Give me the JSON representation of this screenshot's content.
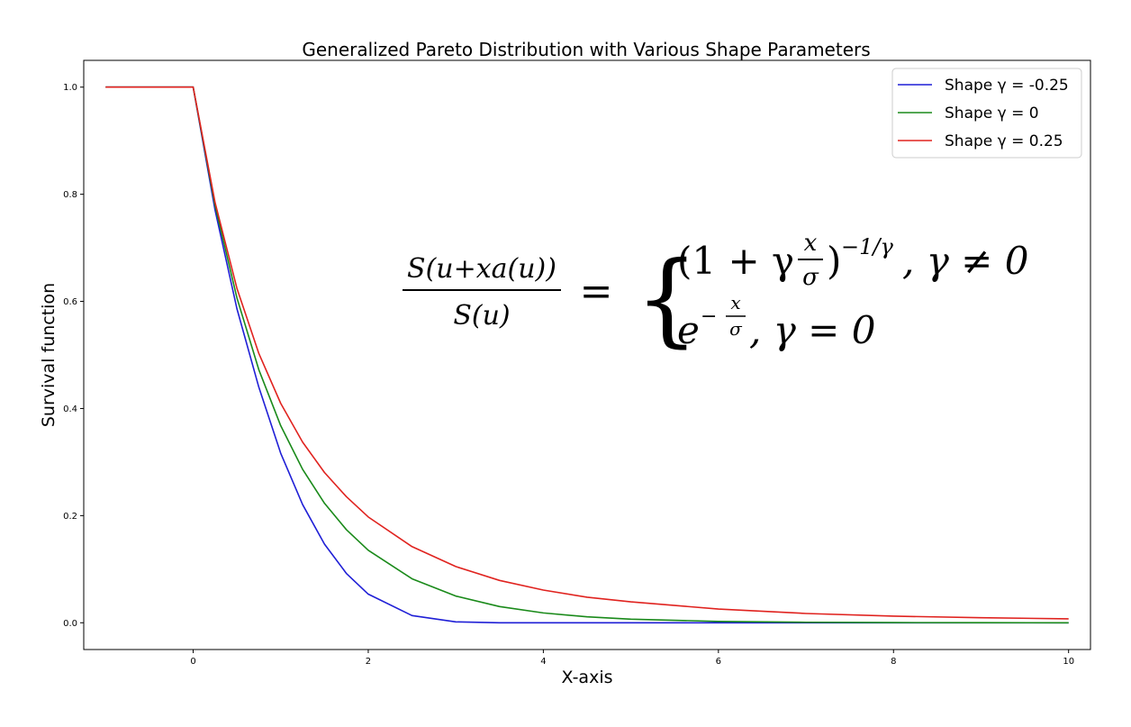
{
  "chart_data": {
    "type": "line",
    "title": "Generalized Pareto Distribution with Various Shape Parameters",
    "xlabel": "X-axis",
    "ylabel": "Survival function",
    "xlim": [
      -1.25,
      10.25
    ],
    "ylim": [
      -0.05,
      1.05
    ],
    "x_ticks": [
      "0",
      "2",
      "4",
      "6",
      "8",
      "10"
    ],
    "x_tick_values": [
      0,
      2,
      4,
      6,
      8,
      10
    ],
    "y_ticks": [
      "0.0",
      "0.2",
      "0.4",
      "0.6",
      "0.8",
      "1.0"
    ],
    "y_tick_values": [
      0.0,
      0.2,
      0.4,
      0.6,
      0.8,
      1.0
    ],
    "grid": false,
    "legend_position": "top-right",
    "x": [
      -1,
      0,
      0.25,
      0.5,
      0.75,
      1,
      1.25,
      1.5,
      1.75,
      2,
      2.5,
      3,
      3.5,
      4,
      4.5,
      5,
      6,
      7,
      8,
      9,
      10
    ],
    "series": [
      {
        "name": "Shape γ = -0.25",
        "color": "#1f1fd6",
        "values": [
          1.0,
          1.0,
          0.7704,
          0.5862,
          0.4398,
          0.3164,
          0.2207,
          0.1468,
          0.0921,
          0.0534,
          0.0134,
          0.0016,
          0.0,
          0.0,
          0.0,
          0.0,
          0.0,
          0.0,
          0.0,
          0.0,
          0.0
        ]
      },
      {
        "name": "Shape γ = 0",
        "color": "#1a8a1a",
        "values": [
          1.0,
          1.0,
          0.7788,
          0.6065,
          0.4724,
          0.3679,
          0.2865,
          0.2231,
          0.1738,
          0.1353,
          0.0821,
          0.0498,
          0.0302,
          0.0183,
          0.0111,
          0.0067,
          0.0025,
          0.0009,
          0.0003,
          0.0001,
          0.0
        ]
      },
      {
        "name": "Shape γ = 0.25",
        "color": "#e0231f",
        "values": [
          1.0,
          1.0,
          0.7847,
          0.6243,
          0.5028,
          0.4096,
          0.3373,
          0.2805,
          0.2354,
          0.1975,
          0.1421,
          0.1049,
          0.079,
          0.061,
          0.0476,
          0.039,
          0.0256,
          0.0173,
          0.0123,
          0.0094,
          0.0073
        ]
      }
    ]
  },
  "formula": {
    "numerator": "S(u+xa(u))",
    "denominator": "S(u)",
    "equals": "=",
    "case1_lhs": "(1 + γ",
    "case1_frac_num": "x",
    "case1_frac_den": "σ",
    "case1_rparen": ")",
    "case1_exponent": "−1/γ",
    "case1_cond": ", γ ≠ 0",
    "case2_base": "e",
    "case2_exp_sign": "−",
    "case2_frac_num": "x",
    "case2_frac_den": "σ",
    "case2_cond": ", γ = 0",
    "brace": "{"
  }
}
